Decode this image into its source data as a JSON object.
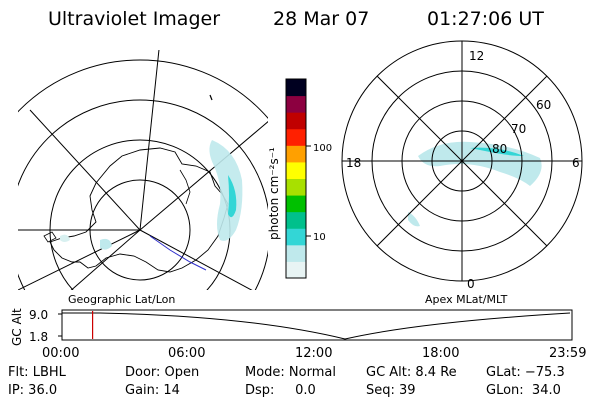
{
  "header": {
    "instrument": "Ultraviolet Imager",
    "date": "28 Mar 07",
    "time": "01:27:06 UT"
  },
  "left_map": {
    "caption": "Geographic Lat/Lon"
  },
  "right_map": {
    "caption": "Apex MLat/MLT",
    "mlt_labels": [
      "12",
      "18",
      "6",
      "0"
    ],
    "lat_labels": [
      "60",
      "70",
      "80"
    ]
  },
  "colorbar": {
    "unit_label": "photon cm⁻²s⁻¹",
    "ticks": [
      "100",
      "10"
    ],
    "colors": [
      "#e8f4f4",
      "#bfe9ec",
      "#33d6d6",
      "#00c08c",
      "#00c000",
      "#a8e000",
      "#ffff00",
      "#ffa000",
      "#ff2000",
      "#c00000",
      "#8c0040",
      "#000020"
    ]
  },
  "altitude_plot": {
    "ylabel": "GC Alt",
    "yticks": [
      "9.0",
      "1.8"
    ],
    "xticks": [
      "00:00",
      "06:00",
      "12:00",
      "18:00",
      "23:59"
    ],
    "marker_time_fraction": 0.06,
    "marker_color": "#cc0000"
  },
  "info": {
    "filter": "Flt: LBHL",
    "ip": "IP: 36.0",
    "door": "Door: Open",
    "gain": "Gain: 14",
    "mode": "Mode: Normal",
    "dsp": "Dsp:     0.0",
    "gc_alt": "GC Alt: 8.4 Re",
    "seq": "Seq: 39",
    "glat": "GLat: −75.3",
    "glon": "GLon:  34.0"
  }
}
